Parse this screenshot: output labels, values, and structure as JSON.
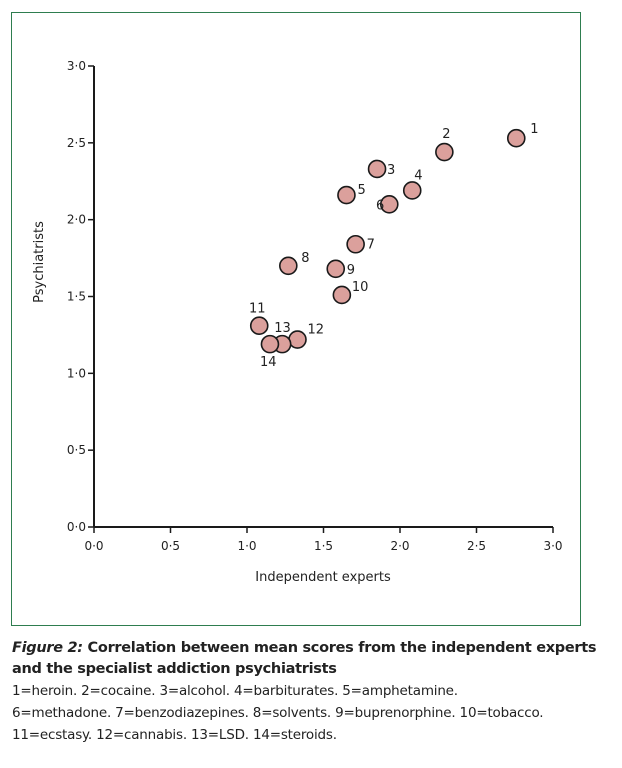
{
  "chart_data": {
    "type": "scatter",
    "title": "",
    "xlabel": "Independent experts",
    "ylabel": "Psychiatrists",
    "xlim": [
      0,
      3
    ],
    "ylim": [
      0,
      3
    ],
    "xticks": [
      "0·0",
      "0·5",
      "1·0",
      "1·5",
      "2·0",
      "2·5",
      "3·0"
    ],
    "yticks": [
      "0·0",
      "0·5",
      "1·0",
      "1·5",
      "2·0",
      "2·5",
      "3·0"
    ],
    "grid": false,
    "marker_color": "#dba09c",
    "points": [
      {
        "label": "1",
        "x": 2.76,
        "y": 2.53
      },
      {
        "label": "2",
        "x": 2.29,
        "y": 2.44
      },
      {
        "label": "3",
        "x": 1.85,
        "y": 2.33
      },
      {
        "label": "4",
        "x": 2.08,
        "y": 2.19
      },
      {
        "label": "5",
        "x": 1.65,
        "y": 2.16
      },
      {
        "label": "6",
        "x": 1.93,
        "y": 2.1
      },
      {
        "label": "7",
        "x": 1.71,
        "y": 1.84
      },
      {
        "label": "8",
        "x": 1.27,
        "y": 1.7
      },
      {
        "label": "9",
        "x": 1.58,
        "y": 1.68
      },
      {
        "label": "10",
        "x": 1.62,
        "y": 1.51
      },
      {
        "label": "11",
        "x": 1.08,
        "y": 1.31
      },
      {
        "label": "12",
        "x": 1.33,
        "y": 1.22
      },
      {
        "label": "13",
        "x": 1.23,
        "y": 1.19
      },
      {
        "label": "14",
        "x": 1.15,
        "y": 1.19
      }
    ]
  },
  "caption": {
    "figure_label": "Figure 2:",
    "title": " Correlation between mean scores from the independent experts and the specialist addiction psychiatrists",
    "lines": [
      "1=heroin. 2=cocaine. 3=alcohol. 4=barbiturates. 5=amphetamine.",
      "6=methadone. 7=benzodiazepines. 8=solvents. 9=buprenorphine. 10=tobacco.",
      "11=ecstasy. 12=cannabis. 13=LSD. 14=steroids."
    ]
  },
  "colors": {
    "frame": "#2e7d4f",
    "marker_fill": "#dba09c",
    "marker_stroke": "#1a1a1a"
  }
}
